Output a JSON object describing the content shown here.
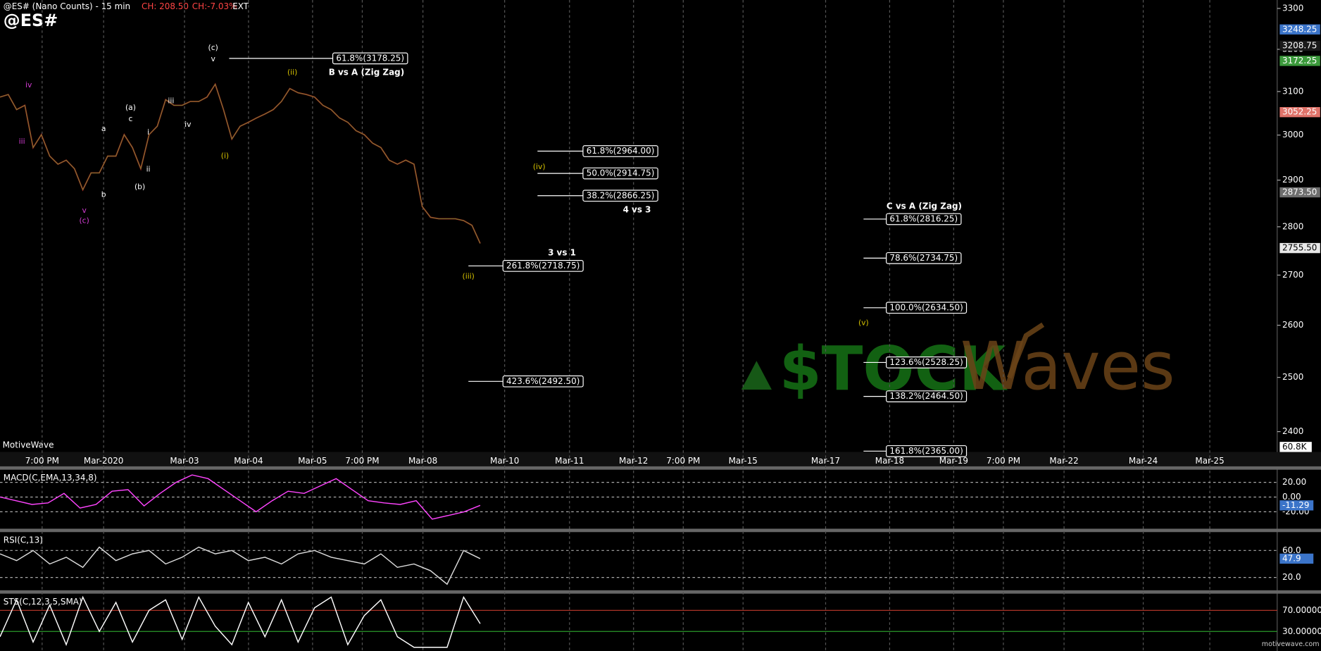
{
  "chart_data": [
    {
      "type": "line",
      "title": "@ES# (Nano Counts) - 15 min",
      "symbol": "@ES#",
      "change": "CH: 208.50",
      "change_pct": "CH:-7.03%",
      "session": "EXT",
      "brand": "MotiveWave",
      "footer": "motivewave.com",
      "watermark_left": "$TOCK",
      "watermark_right": "Waves",
      "volume_tag": "60.8K",
      "log": true,
      "color": "#b22222",
      "ylim": [
        2365,
        3321
      ],
      "yticks": [
        2400,
        2500,
        2600,
        2700,
        2800,
        2900,
        3000,
        3100,
        3200,
        3300
      ],
      "x_labels": [
        "7:00 PM",
        "Mar-2020",
        "Mar-03",
        "Mar-04",
        "Mar-05",
        "7:00 PM",
        "Mar-08",
        "Mar-10",
        "Mar-11",
        "Mar-12",
        "7:00 PM",
        "Mar-15",
        "Mar-17",
        "Mar-18",
        "Mar-19",
        "7:00 PM",
        "Mar-22",
        "Mar-24",
        "Mar-25"
      ],
      "values": [
        3087,
        3093,
        3058,
        3068,
        2972,
        3001,
        2953,
        2935,
        2944,
        2925,
        2879,
        2916,
        2916,
        2953,
        2953,
        3001,
        2972,
        2925,
        3001,
        3020,
        3081,
        3068,
        3068,
        3077,
        3077,
        3087,
        3117,
        3058,
        2991,
        3020,
        3029,
        3039,
        3048,
        3058,
        3077,
        3107,
        3097,
        3093,
        3087,
        3068,
        3058,
        3039,
        3029,
        3010,
        3001,
        2982,
        2972,
        2944,
        2935,
        2944,
        2935,
        2843,
        2820,
        2817,
        2817,
        2817,
        2813,
        2803,
        2765
      ],
      "price_tags": [
        {
          "value": 3248.25,
          "label": "3248.25",
          "color": "#3b74c9"
        },
        {
          "value": 3208.75,
          "label": "3208.75",
          "color": "#1a1a1a"
        },
        {
          "value": 3172.25,
          "label": "3172.25",
          "color": "#3c9a3c"
        },
        {
          "value": 3052.25,
          "label": "3052.25",
          "color": "#e0736a"
        },
        {
          "value": 2873.5,
          "label": "2873.50",
          "color": "#6e6e6e"
        },
        {
          "value": 2755.5,
          "label": "2755.50",
          "color": "#e8e8e8"
        }
      ],
      "fib_groups": [
        {
          "name": "B vs A (Zig Zag)",
          "levels": [
            {
              "label": "61.8%(3178.25)",
              "value": 3178.25
            }
          ]
        },
        {
          "name": "4 vs 3",
          "levels": [
            {
              "label": "61.8%(2964.00)",
              "value": 2964.0
            },
            {
              "label": "50.0%(2914.75)",
              "value": 2914.75
            },
            {
              "label": "38.2%(2866.25)",
              "value": 2866.25
            }
          ]
        },
        {
          "name": "3 vs 1",
          "levels": [
            {
              "label": "261.8%(2718.75)",
              "value": 2718.75
            },
            {
              "label": "423.6%(2492.50)",
              "value": 2492.5
            }
          ]
        },
        {
          "name": "C vs A (Zig Zag)",
          "levels": [
            {
              "label": "61.8%(2816.25)",
              "value": 2816.25
            },
            {
              "label": "78.6%(2734.75)",
              "value": 2734.75
            },
            {
              "label": "100.0%(2634.50)",
              "value": 2634.5
            },
            {
              "label": "123.6%(2528.25)",
              "value": 2528.25
            },
            {
              "label": "138.2%(2464.50)",
              "value": 2464.5
            },
            {
              "label": "161.8%(2365.00)",
              "value": 2365.0
            }
          ]
        }
      ],
      "annotations": [
        "(ii)",
        "(i)",
        "(iii)",
        "(iv)",
        "(v)",
        "iii",
        "iv",
        "v",
        "(c)",
        "(a)",
        "(b)",
        "a",
        "b",
        "c",
        "i",
        "ii",
        "iv",
        "iii",
        "v",
        "(c)"
      ]
    },
    {
      "type": "line",
      "title": "MACD(C,EMA,13,34,8)",
      "color": "#ff44ff",
      "ylim": [
        -43,
        36
      ],
      "yticks": [
        {
          "value": 20,
          "label": "20.00"
        },
        {
          "value": 0,
          "label": "0.00"
        },
        {
          "value": -20,
          "label": "-20.00"
        }
      ],
      "tag": {
        "value": -11.29,
        "label": "-11.29"
      },
      "values": [
        0,
        -5,
        -10,
        -8,
        5,
        -15,
        -10,
        8,
        10,
        -12,
        5,
        20,
        30,
        25,
        10,
        -5,
        -20,
        -5,
        8,
        5,
        15,
        25,
        10,
        -5,
        -8,
        -10,
        -5,
        -30,
        -25,
        -20,
        -11.29
      ]
    },
    {
      "type": "line",
      "title": "RSI(C,13)",
      "color": "#dddddd",
      "ylim": [
        1,
        86
      ],
      "yticks": [
        {
          "value": 60,
          "label": "60.0"
        },
        {
          "value": 20,
          "label": "20.0"
        }
      ],
      "tag": {
        "value": 47.9,
        "label": "47.9"
      },
      "values": [
        55,
        45,
        60,
        40,
        50,
        35,
        65,
        45,
        55,
        60,
        40,
        50,
        65,
        55,
        60,
        45,
        50,
        40,
        55,
        60,
        50,
        45,
        40,
        55,
        35,
        40,
        30,
        10,
        60,
        47.9
      ]
    },
    {
      "type": "line",
      "title": "STS(C,12,3,5,SMA)",
      "color": "#ffffff",
      "ylim": [
        -7,
        100
      ],
      "yticks": [
        {
          "value": 70,
          "label": "70.00000"
        },
        {
          "value": 30,
          "label": "30.00000"
        }
      ],
      "values": [
        20,
        90,
        10,
        80,
        5,
        95,
        30,
        85,
        10,
        70,
        90,
        15,
        95,
        40,
        5,
        85,
        20,
        90,
        10,
        75,
        95,
        5,
        60,
        90,
        20,
        0,
        0,
        0,
        95,
        44.8
      ]
    }
  ]
}
